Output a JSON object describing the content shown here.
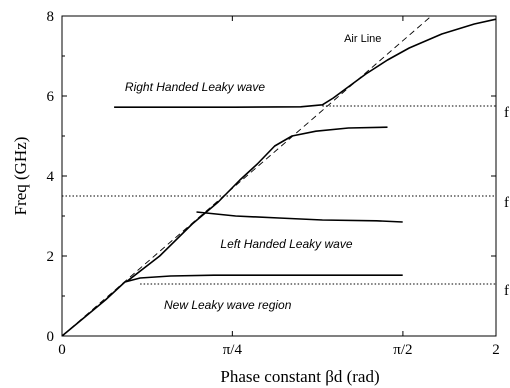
{
  "chart_data": {
    "type": "line",
    "xlabel": "Phase constant βd (rad)",
    "ylabel": "Freq (GHz)",
    "xlim": [
      0,
      2
    ],
    "ylim": [
      0,
      8
    ],
    "x_ticks": [
      {
        "value": 0,
        "label": "0"
      },
      {
        "value": 0.785,
        "label": "π/4"
      },
      {
        "value": 1.571,
        "label": "π/2"
      },
      {
        "value": 2.0,
        "label": "2"
      }
    ],
    "y_ticks": [
      {
        "value": 0,
        "label": "0"
      },
      {
        "value": 2,
        "label": "2"
      },
      {
        "value": 4,
        "label": "4"
      },
      {
        "value": 6,
        "label": "6"
      },
      {
        "value": 8,
        "label": "8"
      }
    ],
    "reference_lines": [
      {
        "y": 5.75,
        "label": "f"
      },
      {
        "y": 3.5,
        "label": "f"
      },
      {
        "y": 1.3,
        "label": "f"
      }
    ],
    "air_line": {
      "label": "Air Line",
      "points": [
        [
          0,
          0
        ],
        [
          2,
          9.4
        ]
      ]
    },
    "series": [
      {
        "values": [
          [
            0,
            0
          ],
          [
            0.1,
            0.45
          ],
          [
            0.2,
            0.9
          ],
          [
            0.29,
            1.35
          ],
          [
            0.36,
            1.45
          ],
          [
            0.5,
            1.5
          ],
          [
            0.7,
            1.52
          ],
          [
            1.0,
            1.52
          ],
          [
            1.3,
            1.52
          ],
          [
            1.57,
            1.52
          ]
        ]
      },
      {
        "values": [
          [
            0.62,
            3.1
          ],
          [
            0.8,
            3.0
          ],
          [
            1.0,
            2.95
          ],
          [
            1.2,
            2.9
          ],
          [
            1.45,
            2.88
          ],
          [
            1.57,
            2.85
          ]
        ]
      },
      {
        "values": [
          [
            0.3,
            1.37
          ],
          [
            0.45,
            2.0
          ],
          [
            0.6,
            2.8
          ],
          [
            0.72,
            3.35
          ],
          [
            0.82,
            3.9
          ],
          [
            0.9,
            4.3
          ],
          [
            0.98,
            4.75
          ],
          [
            1.06,
            5.0
          ],
          [
            1.17,
            5.12
          ],
          [
            1.32,
            5.2
          ],
          [
            1.5,
            5.22
          ]
        ]
      },
      {
        "values": [
          [
            0.24,
            5.72
          ],
          [
            0.5,
            5.72
          ],
          [
            0.8,
            5.72
          ],
          [
            1.1,
            5.73
          ],
          [
            1.2,
            5.78
          ],
          [
            1.25,
            5.95
          ],
          [
            1.3,
            6.15
          ],
          [
            1.4,
            6.55
          ],
          [
            1.5,
            6.9
          ],
          [
            1.6,
            7.2
          ],
          [
            1.75,
            7.55
          ],
          [
            1.9,
            7.8
          ],
          [
            2.0,
            7.92
          ]
        ]
      }
    ],
    "annotations": [
      {
        "text": "Right Handed Leaky wave",
        "x": 0.29,
        "y": 6.12
      },
      {
        "text": "Left Handed Leaky wave",
        "x": 0.73,
        "y": 2.2
      },
      {
        "text": "New Leaky wave region",
        "x": 0.47,
        "y": 0.67
      }
    ]
  }
}
